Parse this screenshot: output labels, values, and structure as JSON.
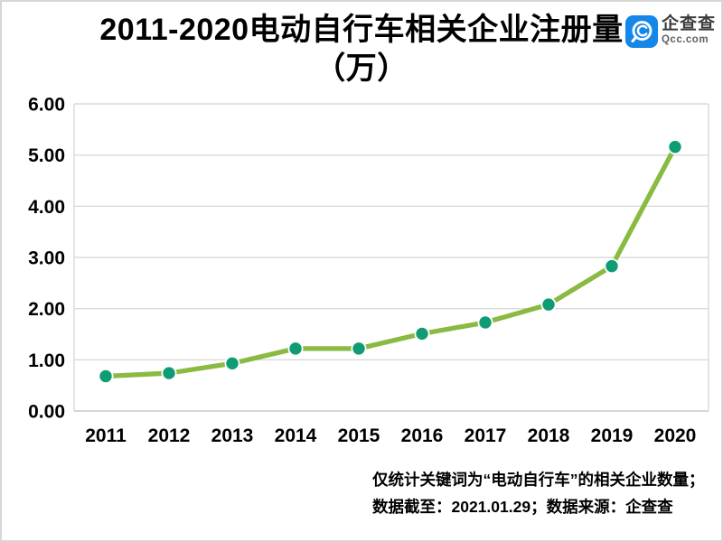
{
  "page": {
    "background": "#ffffff",
    "border_color": "#d6d6d6"
  },
  "header": {
    "title_line1": "2011-2020电动自行车相关企业注册量",
    "title_line2": "（万）",
    "logo": {
      "icon": "qcc-magnifier-icon",
      "brand_blue": "#1487e8",
      "name": "企查查",
      "domain": "Qcc.com"
    }
  },
  "chart_data": {
    "type": "line",
    "title": "2011-2020电动自行车相关企业注册量（万）",
    "categories": [
      "2011",
      "2012",
      "2013",
      "2014",
      "2015",
      "2016",
      "2017",
      "2018",
      "2019",
      "2020"
    ],
    "values": [
      0.68,
      0.74,
      0.93,
      1.22,
      1.22,
      1.51,
      1.73,
      2.08,
      2.83,
      5.16
    ],
    "xlabel": "",
    "ylabel": "",
    "ylim": [
      0,
      6
    ],
    "ytick_labels": [
      "6.00",
      "5.00",
      "4.00",
      "3.00",
      "2.00",
      "1.00",
      "0.00"
    ],
    "grid": true,
    "legend": "none",
    "line_color": "#89ba41",
    "marker_color": "#0f9c74",
    "grid_color": "#dadada",
    "axis_line_color": "#c9c9c9"
  },
  "footer": {
    "note_line1": "仅统计关键词为“电动自行车”的相关企业数量；",
    "note_line2": "数据截至：2021.01.29；数据来源：企查查"
  }
}
